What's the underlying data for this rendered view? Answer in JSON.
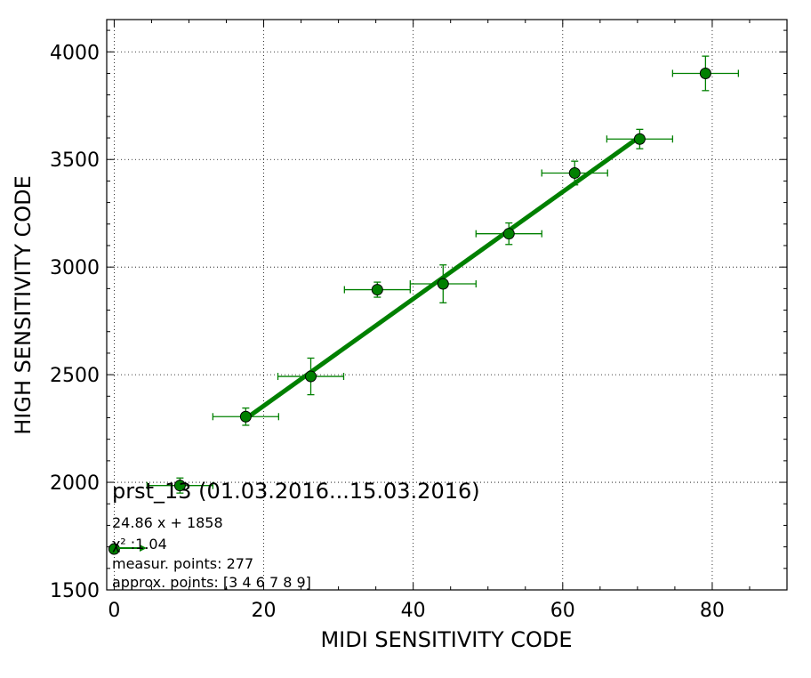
{
  "chart_data": {
    "type": "scatter",
    "title": "",
    "xlabel": "MIDI SENSITIVITY CODE",
    "ylabel": "HIGH SENSITIVITY CODE",
    "xlim": [
      -1,
      90
    ],
    "ylim": [
      1500,
      4150
    ],
    "xticks": [
      "0",
      "20",
      "40",
      "60",
      "80"
    ],
    "xtick_values": [
      0,
      20,
      40,
      60,
      80
    ],
    "yticks": [
      "1500",
      "2000",
      "2500",
      "3000",
      "3500",
      "4000"
    ],
    "ytick_values": [
      1500,
      2000,
      2500,
      3000,
      3500,
      4000
    ],
    "grid": true,
    "series": [
      {
        "color": "#008000",
        "marker": "circle",
        "points": [
          {
            "x": 0.0,
            "y": 1690,
            "xerr": 0,
            "yerr": 0
          },
          {
            "x": 8.8,
            "y": 1985,
            "xerr": 4.4,
            "yerr": 35
          },
          {
            "x": 17.6,
            "y": 2305,
            "xerr": 4.4,
            "yerr": 40
          },
          {
            "x": 26.3,
            "y": 2492,
            "xerr": 4.4,
            "yerr": 85
          },
          {
            "x": 35.2,
            "y": 2895,
            "xerr": 4.4,
            "yerr": 35
          },
          {
            "x": 44.0,
            "y": 2922,
            "xerr": 4.4,
            "yerr": 88
          },
          {
            "x": 52.8,
            "y": 3155,
            "xerr": 4.4,
            "yerr": 50
          },
          {
            "x": 61.6,
            "y": 3437,
            "xerr": 4.4,
            "yerr": 55
          },
          {
            "x": 70.3,
            "y": 3595,
            "xerr": 4.4,
            "yerr": 45
          },
          {
            "x": 79.1,
            "y": 3900,
            "xerr": 4.4,
            "yerr": 80
          }
        ]
      }
    ],
    "fit_line": {
      "color": "#008000",
      "x": [
        17.6,
        70.3
      ],
      "slope": 24.86,
      "intercept": 1858
    },
    "annotations": {
      "title": "prst_13 (01.03.2016...15.03.2016)",
      "equation": "24.86 x + 1858",
      "chi2": "χ² :1.04",
      "measur_points": "measur. points: 277",
      "approx_points": "approx. points: [3 4 6 7 8 9]"
    }
  }
}
